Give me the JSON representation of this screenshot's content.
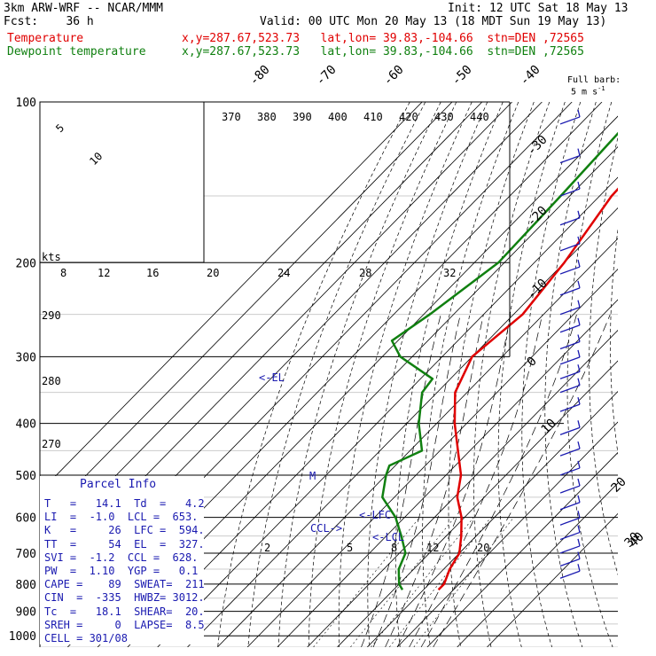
{
  "header": {
    "model": "3km ARW-WRF -- NCAR/MMM",
    "init": "Init: 12 UTC Sat 18 May 13",
    "fcst": "Fcst:    36 h",
    "valid": "Valid: 00 UTC Mon 20 May 13 (18 MDT Sun 19 May 13)",
    "temp_label": "Temperature",
    "temp_info": "x,y=287.67,523.73   lat,lon= 39.83,-104.66  stn=DEN ,72565",
    "dew_label": "Dewpoint temperature",
    "dew_info": "x,y=287.67,523.73   lat,lon= 39.83,-104.66  stn=DEN ,72565"
  },
  "colors": {
    "temperature": "#e00000",
    "dewpoint": "#108010",
    "wind": "#1a1ab0",
    "parcel": "#1a1ab0"
  },
  "wind_legend": {
    "line1": "Full barb:",
    "line2": "5 m s",
    "exp": "-1"
  },
  "parcel": {
    "title": "Parcel Info",
    "rows": [
      "T   =   14.1  Td  =   4.2",
      "LI  =  -1.0  LCL =  653.",
      "K   =     26  LFC =  594.",
      "TT  =     54  EL  =  327.",
      "SVI =  -1.2  CCL =  628.",
      "PW  =  1.10  YGP =   0.1",
      "CAPE =    89  SWEAT=  211",
      "CIN  =  -335  HWBZ= 3012.",
      "Tc  =   18.1  SHEAR=  20.",
      "SREH =     0  LAPSE=  8.5",
      "CELL = 301/08"
    ]
  },
  "hodograph": {
    "units": "kts",
    "speed_labels": [
      "8",
      "12",
      "16",
      "20",
      "24",
      "28",
      "32"
    ],
    "ring_labels": [
      "5",
      "10"
    ]
  },
  "chart_data": {
    "type": "line",
    "pressure_levels": [
      100,
      200,
      300,
      400,
      500,
      600,
      700,
      800,
      900,
      1000
    ],
    "pressure_tick_labels": [
      "100",
      "200",
      "300",
      "400",
      "500",
      "600",
      "700",
      "800",
      "900",
      "1000"
    ],
    "isotherm_labels": [
      "-80",
      "-70",
      "-60",
      "-50",
      "-40",
      "-30",
      "-20",
      "-10",
      "0",
      "10",
      "20",
      "30",
      "40"
    ],
    "dry_adiabat_labels": [
      "370",
      "380",
      "390",
      "400",
      "410",
      "420",
      "430",
      "440"
    ],
    "left_adiabat_labels": [
      "290",
      "280",
      "270"
    ],
    "mixing_ratio_labels": [
      "2",
      "5",
      "8",
      "12",
      "20"
    ],
    "annotations": [
      "<-EL",
      "<-LFC",
      "CCL->",
      "<-LCL",
      "M"
    ],
    "series": [
      {
        "name": "Temperature",
        "pressure": [
          100,
          150,
          200,
          250,
          300,
          350,
          400,
          450,
          500,
          550,
          600,
          650,
          700,
          750,
          800,
          820
        ],
        "temperature_c": [
          -58,
          -56,
          -50,
          -47,
          -50,
          -44,
          -34,
          -24,
          -15,
          -9,
          -1,
          5,
          10,
          12,
          15,
          15
        ]
      },
      {
        "name": "Dewpoint temperature",
        "pressure": [
          100,
          150,
          200,
          250,
          280,
          300,
          330,
          350,
          400,
          450,
          480,
          500,
          550,
          600,
          650,
          700,
          750,
          800,
          820
        ],
        "temperature_c": [
          -75,
          -73,
          -72,
          -78,
          -82,
          -74,
          -56,
          -55,
          -46,
          -36,
          -42,
          -40,
          -34,
          -23,
          -15,
          -8,
          -5,
          0,
          3
        ]
      }
    ],
    "wind_barbs": {
      "pressure": [
        110,
        130,
        150,
        170,
        190,
        210,
        230,
        250,
        270,
        290,
        310,
        330,
        350,
        380,
        420,
        460,
        500,
        540,
        580,
        620,
        660,
        700,
        740,
        780
      ]
    }
  }
}
